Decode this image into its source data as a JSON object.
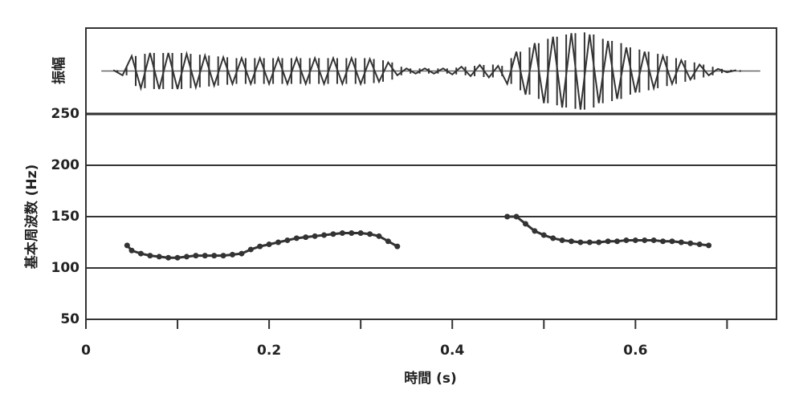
{
  "chart_data": [
    {
      "type": "line",
      "ylabel": "振幅",
      "xlim": [
        0,
        0.754
      ],
      "ylim": [
        -1,
        1
      ],
      "color": "#333",
      "x": [
        0.03,
        0.04,
        0.05,
        0.06,
        0.07,
        0.08,
        0.09,
        0.1,
        0.11,
        0.12,
        0.13,
        0.14,
        0.15,
        0.16,
        0.17,
        0.18,
        0.19,
        0.2,
        0.21,
        0.22,
        0.23,
        0.24,
        0.25,
        0.26,
        0.27,
        0.28,
        0.29,
        0.3,
        0.31,
        0.32,
        0.33,
        0.34,
        0.35,
        0.36,
        0.37,
        0.38,
        0.39,
        0.4,
        0.41,
        0.42,
        0.43,
        0.44,
        0.45,
        0.46,
        0.47,
        0.48,
        0.49,
        0.5,
        0.51,
        0.52,
        0.53,
        0.54,
        0.55,
        0.56,
        0.57,
        0.58,
        0.59,
        0.6,
        0.61,
        0.62,
        0.63,
        0.64,
        0.65,
        0.66,
        0.67,
        0.68,
        0.69,
        0.7,
        0.71
      ],
      "values": [
        0.02,
        0.1,
        0.35,
        0.4,
        0.42,
        0.42,
        0.42,
        0.42,
        0.4,
        0.38,
        0.36,
        0.34,
        0.32,
        0.3,
        0.3,
        0.3,
        0.3,
        0.3,
        0.3,
        0.3,
        0.3,
        0.3,
        0.3,
        0.3,
        0.3,
        0.3,
        0.3,
        0.3,
        0.28,
        0.25,
        0.2,
        0.1,
        0.06,
        0.06,
        0.06,
        0.06,
        0.06,
        0.08,
        0.1,
        0.12,
        0.14,
        0.15,
        0.12,
        0.3,
        0.45,
        0.55,
        0.65,
        0.75,
        0.8,
        0.85,
        0.88,
        0.9,
        0.85,
        0.75,
        0.7,
        0.65,
        0.55,
        0.5,
        0.45,
        0.4,
        0.35,
        0.3,
        0.25,
        0.2,
        0.15,
        0.1,
        0.05,
        0.03,
        0.02
      ]
    },
    {
      "type": "line",
      "ylabel": "基本周波数 (Hz)",
      "xlabel": "時間 (s)",
      "xlim": [
        0,
        0.754
      ],
      "ylim": [
        50,
        250
      ],
      "xticks": [
        0,
        0.2,
        0.4,
        0.6
      ],
      "xminor_ticks": [
        0.1,
        0.3,
        0.5,
        0.7
      ],
      "yticks": [
        50,
        100,
        150,
        200,
        250
      ],
      "grid": true,
      "color": "#333",
      "x": [
        0.045,
        0.05,
        0.06,
        0.07,
        0.08,
        0.09,
        0.1,
        0.11,
        0.12,
        0.13,
        0.14,
        0.15,
        0.16,
        0.17,
        0.18,
        0.19,
        0.2,
        0.21,
        0.22,
        0.23,
        0.24,
        0.25,
        0.26,
        0.27,
        0.28,
        0.29,
        0.3,
        0.31,
        0.32,
        0.33,
        0.34,
        0.4,
        0.46,
        0.47,
        0.48,
        0.49,
        0.5,
        0.51,
        0.52,
        0.53,
        0.54,
        0.55,
        0.56,
        0.57,
        0.58,
        0.59,
        0.6,
        0.61,
        0.62,
        0.63,
        0.64,
        0.65,
        0.66,
        0.67,
        0.68
      ],
      "values": [
        122,
        117,
        114,
        112,
        111,
        110,
        110,
        111,
        112,
        112,
        112,
        112,
        113,
        114,
        118,
        121,
        123,
        125,
        127,
        129,
        130,
        131,
        132,
        133,
        134,
        134,
        134,
        133,
        131,
        126,
        121,
        null,
        150,
        150,
        143,
        136,
        132,
        129,
        127,
        126,
        125,
        125,
        125,
        126,
        126,
        127,
        127,
        127,
        127,
        126,
        126,
        125,
        124,
        123,
        122
      ]
    }
  ]
}
